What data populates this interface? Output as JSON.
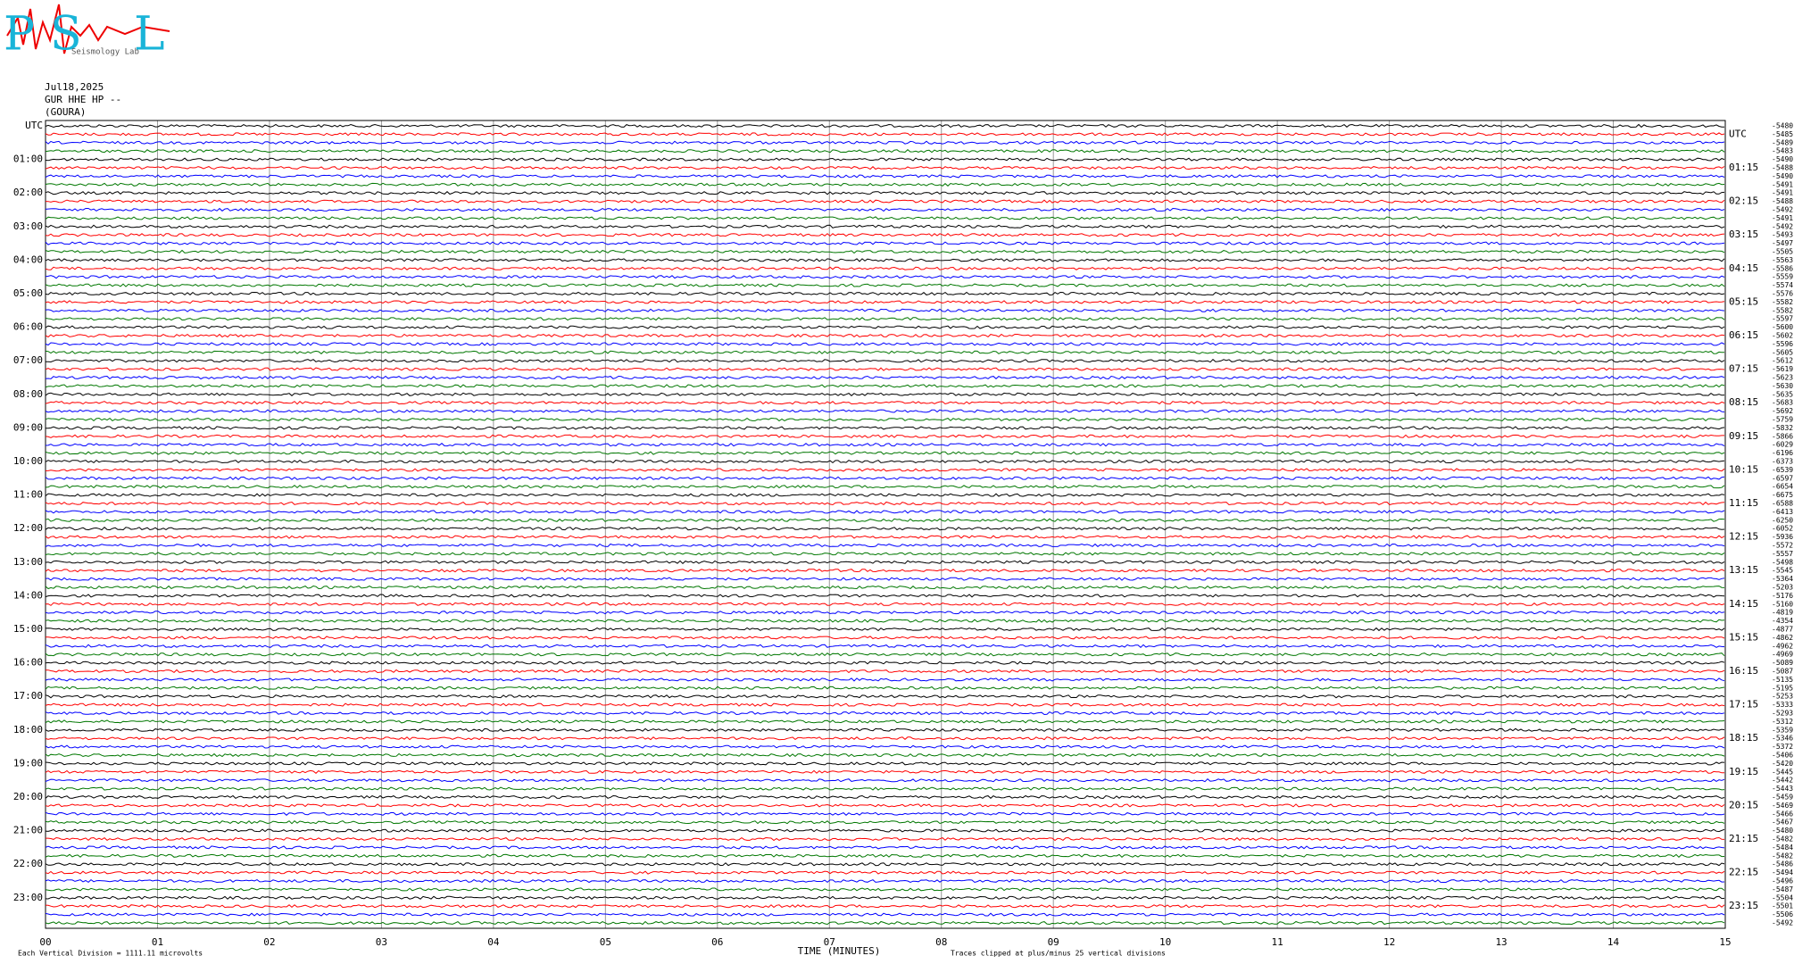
{
  "header": {
    "logo": {
      "p": "P",
      "s": "S",
      "l": "L",
      "caption": "Seismology Lab"
    },
    "date": "Jul18,2025",
    "station": "GUR HHE HP --",
    "location": "(GOURA)"
  },
  "left_labels": [
    "UTC",
    "01:00",
    "02:00",
    "03:00",
    "04:00",
    "05:00",
    "06:00",
    "07:00",
    "08:00",
    "09:00",
    "10:00",
    "11:00",
    "12:00",
    "13:00",
    "14:00",
    "15:00",
    "16:00",
    "17:00",
    "18:00",
    "19:00",
    "20:00",
    "21:00",
    "22:00",
    "23:00"
  ],
  "right_labels": [
    "UTC",
    "01:15",
    "02:15",
    "03:15",
    "04:15",
    "05:15",
    "06:15",
    "07:15",
    "08:15",
    "09:15",
    "10:15",
    "11:15",
    "12:15",
    "13:15",
    "14:15",
    "15:15",
    "16:15",
    "17:15",
    "18:15",
    "19:15",
    "20:15",
    "21:15",
    "22:15",
    "23:15"
  ],
  "offsets": [
    "-5480",
    "-5485",
    "-5489",
    "-5483",
    "-5490",
    "-5488",
    "-5490",
    "-5491",
    "-5491",
    "-5488",
    "-5492",
    "-5491",
    "-5492",
    "-5493",
    "-5497",
    "-5505",
    "-5563",
    "-5586",
    "-5559",
    "-5574",
    "-5576",
    "-5582",
    "-5582",
    "-5597",
    "-5600",
    "-5602",
    "-5596",
    "-5605",
    "-5612",
    "-5619",
    "-5623",
    "-5630",
    "-5635",
    "-5683",
    "-5692",
    "-5759",
    "-5832",
    "-5866",
    "-6029",
    "-6196",
    "-6373",
    "-6539",
    "-6597",
    "-6654",
    "-6675",
    "-6588",
    "-6413",
    "-6250",
    "-6052",
    "-5936",
    "-5572",
    "-5557",
    "-5498",
    "-5545",
    "-5364",
    "-5203",
    "-5176",
    "-5160",
    "-4819",
    "-4354",
    "-4877",
    "-4862",
    "-4962",
    "-4969",
    "-5089",
    "-5087",
    "-5135",
    "-5195",
    "-5253",
    "-5333",
    "-5293",
    "-5312",
    "-5359",
    "-5346",
    "-5372",
    "-5406",
    "-5420",
    "-5445",
    "-5442",
    "-5443",
    "-5459",
    "-5469",
    "-5466",
    "-5467",
    "-5480",
    "-5482",
    "-5484",
    "-5482",
    "-5486",
    "-5494",
    "-5496",
    "-5487",
    "-5504",
    "-5501",
    "-5506",
    "-5492"
  ],
  "x_ticks": [
    "00",
    "01",
    "02",
    "03",
    "04",
    "05",
    "06",
    "07",
    "08",
    "09",
    "10",
    "11",
    "12",
    "13",
    "14",
    "15"
  ],
  "x_label": "TIME (MINUTES)",
  "footer": {
    "division": "Each Vertical Division = 1111.11 microvolts",
    "clip": "Traces clipped at plus/minus 25 vertical divisions"
  },
  "trace_colors": [
    "#000000",
    "#ff0000",
    "#0000ff",
    "#007700"
  ]
}
